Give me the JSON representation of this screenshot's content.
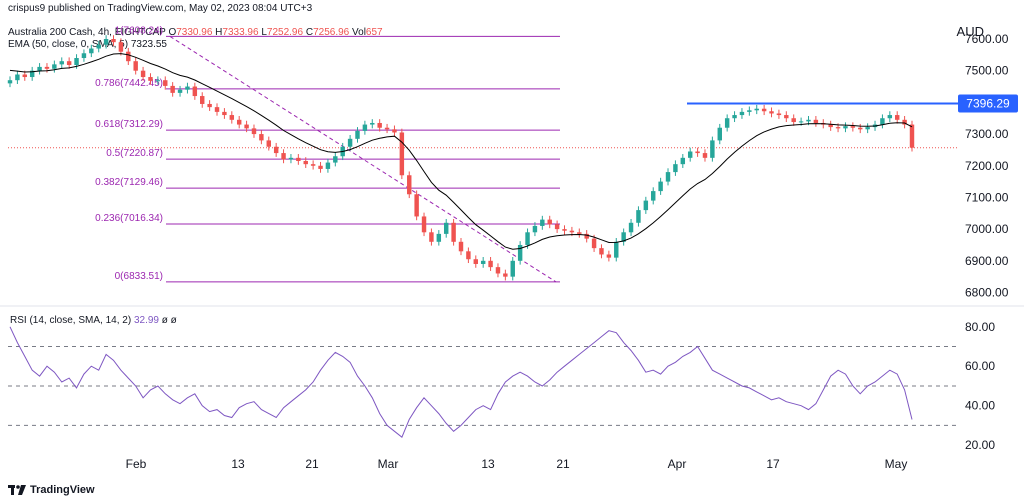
{
  "header": {
    "published": "crispus9 published on TradingView.com, May 02, 2023 08:04 UTC+3",
    "symbol": "Australia 200 Cash, 4h, EIGHTCAP",
    "ohlc": {
      "O": "7330.96",
      "H": "7333.96",
      "L": "7252.96",
      "C": "7256.96",
      "Vol": "657"
    },
    "ema": {
      "label": "EMA (50, close, 0, SMA, 5)",
      "value": "7323.55"
    },
    "currency": "AUD"
  },
  "rsi_header": {
    "label": "RSI (14, close, SMA, 14, 2)",
    "value": "32.99",
    "extra": "ø ø"
  },
  "logo": {
    "text": "TradingView"
  },
  "colors": {
    "up": "#26a69a",
    "down": "#ef5350",
    "ema": "#000000",
    "fib": "#9c27b0",
    "resistance": "#2962ff",
    "rsi": "#7e57c2",
    "price_line": "#ef5350"
  },
  "chart_data": [
    {
      "type": "candlestick",
      "title": "Australia 200 Cash, 4h, EIGHTCAP",
      "ylim": [
        6770,
        7660
      ],
      "yticks": [
        6800,
        6900,
        7000,
        7100,
        7200,
        7300,
        7400,
        7500,
        7600
      ],
      "ytick_labels": [
        "6800.00",
        "6900.00",
        "7000.00",
        "7100.00",
        "7200.00",
        "7300.00",
        "7400.00",
        "7500.00",
        "7600.00"
      ],
      "xtick_labels": [
        "Feb",
        "13",
        "21",
        "Mar",
        "13",
        "21",
        "Apr",
        "17",
        "May"
      ],
      "fib_levels": [
        {
          "label": "1(7608.24)",
          "value": 7608.24
        },
        {
          "label": "0.786(7442.45)",
          "value": 7442.45
        },
        {
          "label": "0.618(7312.29)",
          "value": 7312.29
        },
        {
          "label": "0.5(7220.87)",
          "value": 7220.87
        },
        {
          "label": "0.382(7129.46)",
          "value": 7129.46
        },
        {
          "label": "0.236(7016.34)",
          "value": 7016.34
        },
        {
          "label": "0(6833.51)",
          "value": 6833.51
        }
      ],
      "resistance": {
        "label": "7396.29",
        "value": 7396.29
      },
      "last_close": 7256.96,
      "close_series": [
        7470,
        7488,
        7480,
        7500,
        7512,
        7506,
        7520,
        7530,
        7518,
        7540,
        7555,
        7570,
        7582,
        7600,
        7590,
        7560,
        7530,
        7500,
        7480,
        7468,
        7470,
        7452,
        7430,
        7440,
        7450,
        7420,
        7395,
        7385,
        7370,
        7360,
        7345,
        7330,
        7318,
        7300,
        7280,
        7260,
        7240,
        7220,
        7225,
        7215,
        7205,
        7200,
        7190,
        7210,
        7230,
        7260,
        7285,
        7310,
        7330,
        7335,
        7320,
        7315,
        7305,
        7170,
        7110,
        7040,
        6990,
        6960,
        6985,
        7020,
        6960,
        6930,
        6905,
        6890,
        6900,
        6880,
        6860,
        6850,
        6900,
        6950,
        6990,
        7010,
        7030,
        7015,
        7000,
        6995,
        6990,
        6985,
        6970,
        6940,
        6920,
        6910,
        6960,
        6990,
        7020,
        7060,
        7090,
        7120,
        7150,
        7180,
        7205,
        7225,
        7245,
        7240,
        7225,
        7280,
        7320,
        7350,
        7360,
        7370,
        7375,
        7380,
        7372,
        7365,
        7360,
        7350,
        7338,
        7340,
        7345,
        7335,
        7330,
        7322,
        7318,
        7325,
        7320,
        7315,
        7322,
        7330,
        7350,
        7360,
        7345,
        7330,
        7257
      ],
      "ema_label": "EMA (50, close, 0, SMA, 5)"
    },
    {
      "type": "line",
      "title": "RSI (14, close, SMA, 14, 2)",
      "ylim": [
        15,
        88
      ],
      "yticks": [
        20,
        40,
        60,
        80
      ],
      "ytick_labels": [
        "20.00",
        "40.00",
        "60.00",
        "80.00"
      ],
      "bands": [
        70,
        50,
        30
      ],
      "series": [
        {
          "name": "RSI",
          "values": [
            80,
            72,
            65,
            58,
            55,
            60,
            57,
            52,
            54,
            49,
            56,
            60,
            58,
            66,
            63,
            58,
            54,
            50,
            44,
            48,
            50,
            46,
            43,
            41,
            44,
            46,
            40,
            37,
            38,
            35,
            34,
            39,
            41,
            42,
            38,
            36,
            34,
            39,
            42,
            45,
            48,
            52,
            58,
            63,
            67,
            65,
            62,
            55,
            50,
            44,
            36,
            30,
            27,
            24,
            33,
            39,
            44,
            40,
            36,
            31,
            27,
            30,
            34,
            38,
            40,
            38,
            46,
            52,
            55,
            57,
            55,
            52,
            50,
            53,
            57,
            60,
            63,
            66,
            69,
            72,
            75,
            78,
            77,
            72,
            68,
            63,
            57,
            58,
            56,
            60,
            62,
            65,
            67,
            70,
            64,
            58,
            56,
            54,
            52,
            50,
            49,
            47,
            45,
            43,
            44,
            42,
            41,
            40,
            38,
            41,
            48,
            55,
            58,
            56,
            50,
            46,
            50,
            52,
            55,
            58,
            56,
            48,
            33
          ]
        }
      ]
    }
  ]
}
